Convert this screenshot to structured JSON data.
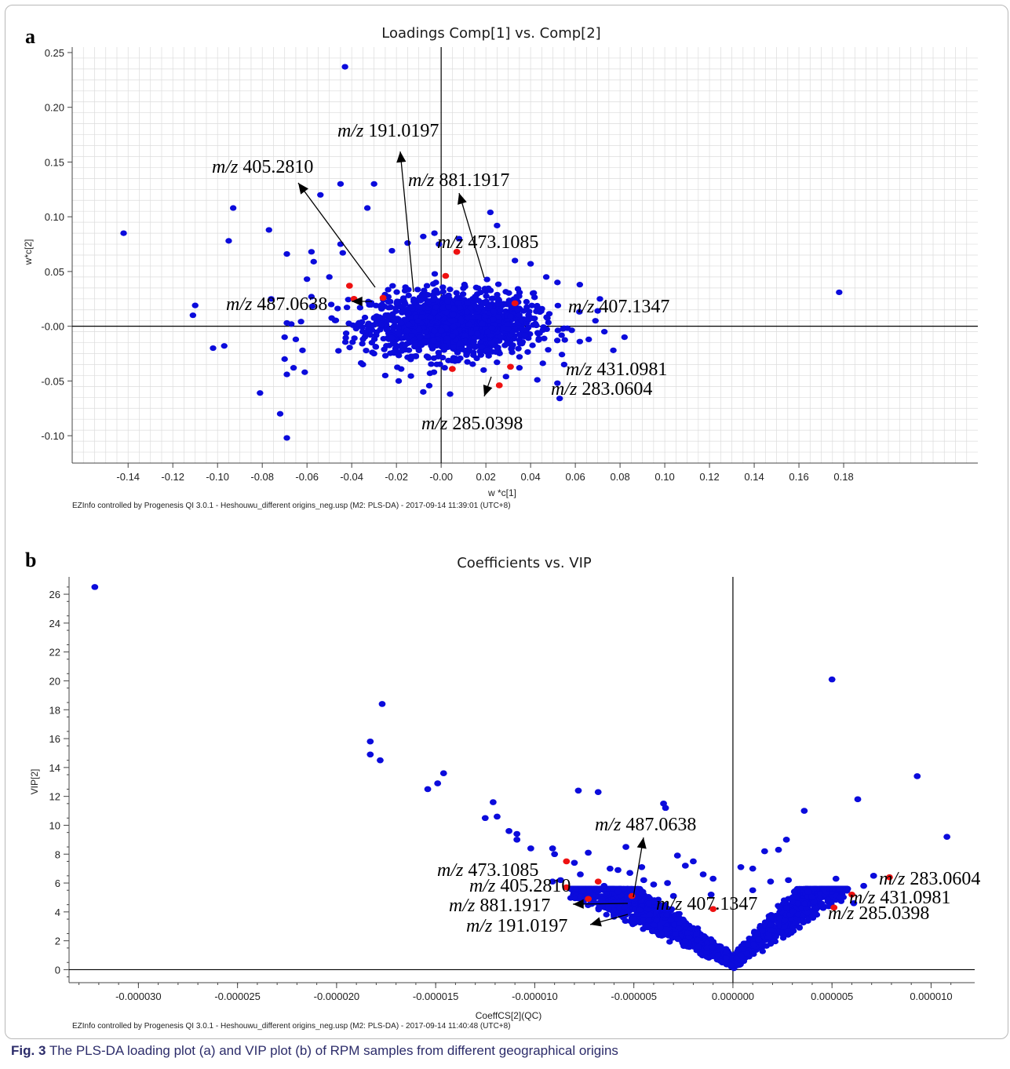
{
  "caption": {
    "label": "Fig. 3",
    "text": "The PLS-DA loading plot (a) and VIP plot (b) of RPM samples from different geographical origins"
  },
  "colors": {
    "background_points": "#0b0bdc",
    "marker_points": "#ee1111",
    "grid": "#dcdcdc"
  },
  "chart_data": [
    {
      "type": "scatter",
      "panel": "a",
      "title": "Loadings Comp[1] vs. Comp[2]",
      "xlabel": "w *c[1]",
      "ylabel": "w*c[2]",
      "xlim": [
        -0.165,
        0.24
      ],
      "ylim": [
        -0.125,
        0.255
      ],
      "xticks": [
        -0.14,
        -0.12,
        -0.1,
        -0.08,
        -0.06,
        -0.04,
        -0.02,
        0.0,
        0.02,
        0.04,
        0.06,
        0.08,
        0.1,
        0.12,
        0.14,
        0.16,
        0.18
      ],
      "xtick_labels": [
        "-0.14",
        "-0.12",
        "-0.10",
        "-0.08",
        "-0.06",
        "-0.04",
        "-0.02",
        "-0.00",
        "0.02",
        "0.04",
        "0.06",
        "0.08",
        "0.10",
        "0.12",
        "0.14",
        "0.16",
        "0.18"
      ],
      "yticks": [
        -0.1,
        -0.05,
        0.0,
        0.05,
        0.1,
        0.15,
        0.2,
        0.25
      ],
      "ytick_labels": [
        "-0.10",
        "-0.05",
        "-0.00",
        "0.05",
        "0.10",
        "0.15",
        "0.20",
        "0.25"
      ],
      "grid": true,
      "footer": "EZInfo controlled by Progenesis QI 3.0.1 - Heshouwu_different origins_neg.usp (M2: PLS-DA) - 2017-09-14 11:39:01 (UTC+8)",
      "cluster": {
        "center": [
          0.005,
          0.002
        ],
        "spread": [
          0.018,
          0.014
        ],
        "count": 1600
      },
      "outliers": [
        [
          -0.142,
          0.085
        ],
        [
          -0.043,
          0.237
        ],
        [
          -0.093,
          0.108
        ],
        [
          -0.095,
          0.078
        ],
        [
          -0.11,
          0.019
        ],
        [
          -0.111,
          0.01
        ],
        [
          -0.102,
          -0.02
        ],
        [
          -0.097,
          -0.018
        ],
        [
          -0.081,
          -0.061
        ],
        [
          -0.072,
          -0.08
        ],
        [
          -0.069,
          -0.102
        ],
        [
          -0.077,
          0.088
        ],
        [
          -0.069,
          0.066
        ],
        [
          -0.054,
          0.12
        ],
        [
          -0.044,
          0.067
        ],
        [
          -0.045,
          0.075
        ],
        [
          -0.058,
          0.068
        ],
        [
          -0.057,
          0.059
        ],
        [
          -0.045,
          0.13
        ],
        [
          -0.033,
          0.108
        ],
        [
          -0.03,
          0.13
        ],
        [
          -0.05,
          0.045
        ],
        [
          -0.06,
          0.043
        ],
        [
          -0.07,
          -0.03
        ],
        [
          -0.066,
          -0.038
        ],
        [
          -0.069,
          -0.044
        ],
        [
          -0.061,
          -0.042
        ],
        [
          -0.062,
          -0.022
        ],
        [
          -0.035,
          -0.035
        ],
        [
          -0.03,
          -0.025
        ],
        [
          -0.076,
          0.025
        ],
        [
          -0.058,
          0.027
        ],
        [
          -0.069,
          0.003
        ],
        [
          -0.067,
          0.002
        ],
        [
          -0.07,
          -0.01
        ],
        [
          -0.065,
          -0.012
        ],
        [
          -0.022,
          0.069
        ],
        [
          -0.015,
          0.076
        ],
        [
          -0.008,
          0.082
        ],
        [
          -0.003,
          0.085
        ],
        [
          -0.001,
          0.075
        ],
        [
          0.008,
          0.08
        ],
        [
          0.022,
          0.104
        ],
        [
          0.025,
          0.092
        ],
        [
          0.033,
          0.06
        ],
        [
          0.04,
          0.057
        ],
        [
          0.047,
          0.045
        ],
        [
          0.052,
          0.04
        ],
        [
          0.062,
          0.038
        ],
        [
          0.07,
          0.014
        ],
        [
          0.066,
          -0.012
        ],
        [
          0.062,
          -0.014
        ],
        [
          0.055,
          -0.035
        ],
        [
          0.053,
          -0.066
        ],
        [
          0.052,
          -0.052
        ],
        [
          0.043,
          -0.049
        ],
        [
          0.035,
          -0.038
        ],
        [
          0.029,
          -0.046
        ],
        [
          0.019,
          -0.04
        ],
        [
          -0.019,
          -0.05
        ],
        [
          -0.005,
          -0.043
        ],
        [
          -0.008,
          -0.06
        ],
        [
          0.004,
          -0.062
        ],
        [
          0.178,
          0.031
        ],
        [
          0.082,
          -0.01
        ],
        [
          0.077,
          -0.022
        ],
        [
          0.073,
          -0.005
        ],
        [
          -0.025,
          -0.045
        ],
        [
          0.071,
          0.025
        ],
        [
          0.069,
          0.005
        ]
      ],
      "highlighted": [
        {
          "label": "m/z 405.2810",
          "x": -0.041,
          "y": 0.037
        },
        {
          "label": "m/z 487.0638",
          "x": -0.039,
          "y": 0.025
        },
        {
          "label": "m/z 191.0197",
          "x": -0.026,
          "y": 0.026
        },
        {
          "label": "m/z 881.1917",
          "x": 0.002,
          "y": 0.046
        },
        {
          "label": "m/z 473.1085",
          "x": 0.007,
          "y": 0.068
        },
        {
          "label": "m/z 407.1347",
          "x": 0.033,
          "y": 0.021
        },
        {
          "label": "m/z 431.0981",
          "x": 0.031,
          "y": -0.037
        },
        {
          "label": "m/z 283.0604",
          "x": 0.026,
          "y": -0.054
        },
        {
          "label": "m/z 285.0398",
          "x": 0.005,
          "y": -0.039
        }
      ]
    },
    {
      "type": "scatter",
      "panel": "b",
      "title": "Coefficients vs. VIP",
      "xlabel": "CoeffCS[2](QC)",
      "ylabel": "VIP[2]",
      "xlim": [
        -3.35e-05,
        1.22e-05
      ],
      "ylim": [
        -0.9,
        27.2
      ],
      "xticks": [
        -3e-05,
        -2.5e-05,
        -2e-05,
        -1.5e-05,
        -1e-05,
        -5e-06,
        0,
        5e-06,
        1e-05
      ],
      "xtick_labels": [
        "-0.000030",
        "-0.000025",
        "-0.000020",
        "-0.000015",
        "-0.000010",
        "-0.000005",
        "0.000000",
        "0.000005",
        "0.000010"
      ],
      "yticks": [
        0,
        2,
        4,
        6,
        8,
        10,
        12,
        14,
        16,
        18,
        20,
        22,
        24,
        26
      ],
      "ytick_labels": [
        "0",
        "2",
        "4",
        "6",
        "8",
        "10",
        "12",
        "14",
        "16",
        "18",
        "20",
        "22",
        "24",
        "26"
      ],
      "grid": false,
      "footer": "EZInfo controlled by Progenesis QI 3.0.1 - Heshouwu_different origins_neg.usp (M2: PLS-DA) - 2017-09-14 11:40:48 (UTC+8)",
      "cone": {
        "slope_left": 1050000,
        "slope_right": 1500000,
        "count": 2200
      },
      "outliers": [
        [
          -3.22e-05,
          26.5
        ],
        [
          -1.77e-05,
          18.4
        ],
        [
          -1.83e-05,
          15.8
        ],
        [
          -1.83e-05,
          14.9
        ],
        [
          -1.78e-05,
          14.5
        ],
        [
          -1.46e-05,
          13.6
        ],
        [
          -1.49e-05,
          12.9
        ],
        [
          -1.54e-05,
          12.5
        ],
        [
          -1.21e-05,
          11.6
        ],
        [
          -1.19e-05,
          10.6
        ],
        [
          -1.25e-05,
          10.5
        ],
        [
          -1.13e-05,
          9.6
        ],
        [
          -1.09e-05,
          9.4
        ],
        [
          -1.09e-05,
          9.0
        ],
        [
          -1.02e-05,
          8.4
        ],
        [
          -9.1e-06,
          8.4
        ],
        [
          -9e-06,
          8.0
        ],
        [
          -7.8e-06,
          12.4
        ],
        [
          -6.8e-06,
          12.3
        ],
        [
          -7.3e-06,
          8.1
        ],
        [
          -8e-06,
          7.4
        ],
        [
          -7.7e-06,
          6.6
        ],
        [
          -6.2e-06,
          7.0
        ],
        [
          -5.8e-06,
          6.9
        ],
        [
          -5.2e-06,
          6.7
        ],
        [
          -4.5e-06,
          6.2
        ],
        [
          -3.5e-06,
          11.5
        ],
        [
          -3.4e-06,
          11.2
        ],
        [
          -2.8e-06,
          7.9
        ],
        [
          -2.4e-06,
          7.2
        ],
        [
          -2e-06,
          7.5
        ],
        [
          -1.5e-06,
          6.6
        ],
        [
          -1e-06,
          6.3
        ],
        [
          1e-06,
          7.0
        ],
        [
          1.6e-06,
          8.2
        ],
        [
          2.3e-06,
          8.3
        ],
        [
          2.7e-06,
          9.0
        ],
        [
          3.6e-06,
          11.0
        ],
        [
          5e-06,
          20.1
        ],
        [
          6.3e-06,
          11.8
        ],
        [
          9.3e-06,
          13.4
        ],
        [
          1.08e-05,
          9.2
        ],
        [
          7.1e-06,
          6.5
        ],
        [
          6.6e-06,
          5.8
        ],
        [
          5.2e-06,
          6.3
        ],
        [
          4.6e-06,
          5.6
        ],
        [
          3.8e-06,
          5.4
        ],
        [
          3.1e-06,
          5.4
        ],
        [
          2.8e-06,
          6.2
        ],
        [
          1.9e-06,
          6.1
        ],
        [
          1e-06,
          5.5
        ],
        [
          -4e-06,
          5.9
        ],
        [
          -3.3e-06,
          6.0
        ],
        [
          -1.1e-06,
          5.2
        ],
        [
          -6.5e-06,
          5.8
        ],
        [
          -5.8e-06,
          5.4
        ],
        [
          -8.7e-06,
          6.2
        ],
        [
          -9.1e-06,
          6.1
        ],
        [
          -5.4e-06,
          8.5
        ],
        [
          -4.6e-06,
          7.1
        ],
        [
          5.4e-06,
          5.0
        ],
        [
          6.1e-06,
          4.6
        ],
        [
          4.1e-06,
          4.7
        ],
        [
          -3e-06,
          5.1
        ],
        [
          4e-07,
          7.1
        ]
      ],
      "highlighted": [
        {
          "label": "m/z 487.0638",
          "x": -5.1e-06,
          "y": 5.1
        },
        {
          "label": "m/z 473.1085",
          "x": -8.4e-06,
          "y": 7.5
        },
        {
          "label": "m/z 405.2810",
          "x": -6.8e-06,
          "y": 6.1
        },
        {
          "label": "m/z 881.1917",
          "x": -8.4e-06,
          "y": 5.7
        },
        {
          "label": "m/z 191.0197",
          "x": -7.3e-06,
          "y": 4.9
        },
        {
          "label": "m/z 407.1347",
          "x": -1e-06,
          "y": 4.2
        },
        {
          "label": "m/z 283.0604",
          "x": 7.9e-06,
          "y": 6.4
        },
        {
          "label": "m/z 431.0981",
          "x": 6e-06,
          "y": 5.2
        },
        {
          "label": "m/z 285.0398",
          "x": 5.1e-06,
          "y": 4.3
        }
      ]
    }
  ]
}
